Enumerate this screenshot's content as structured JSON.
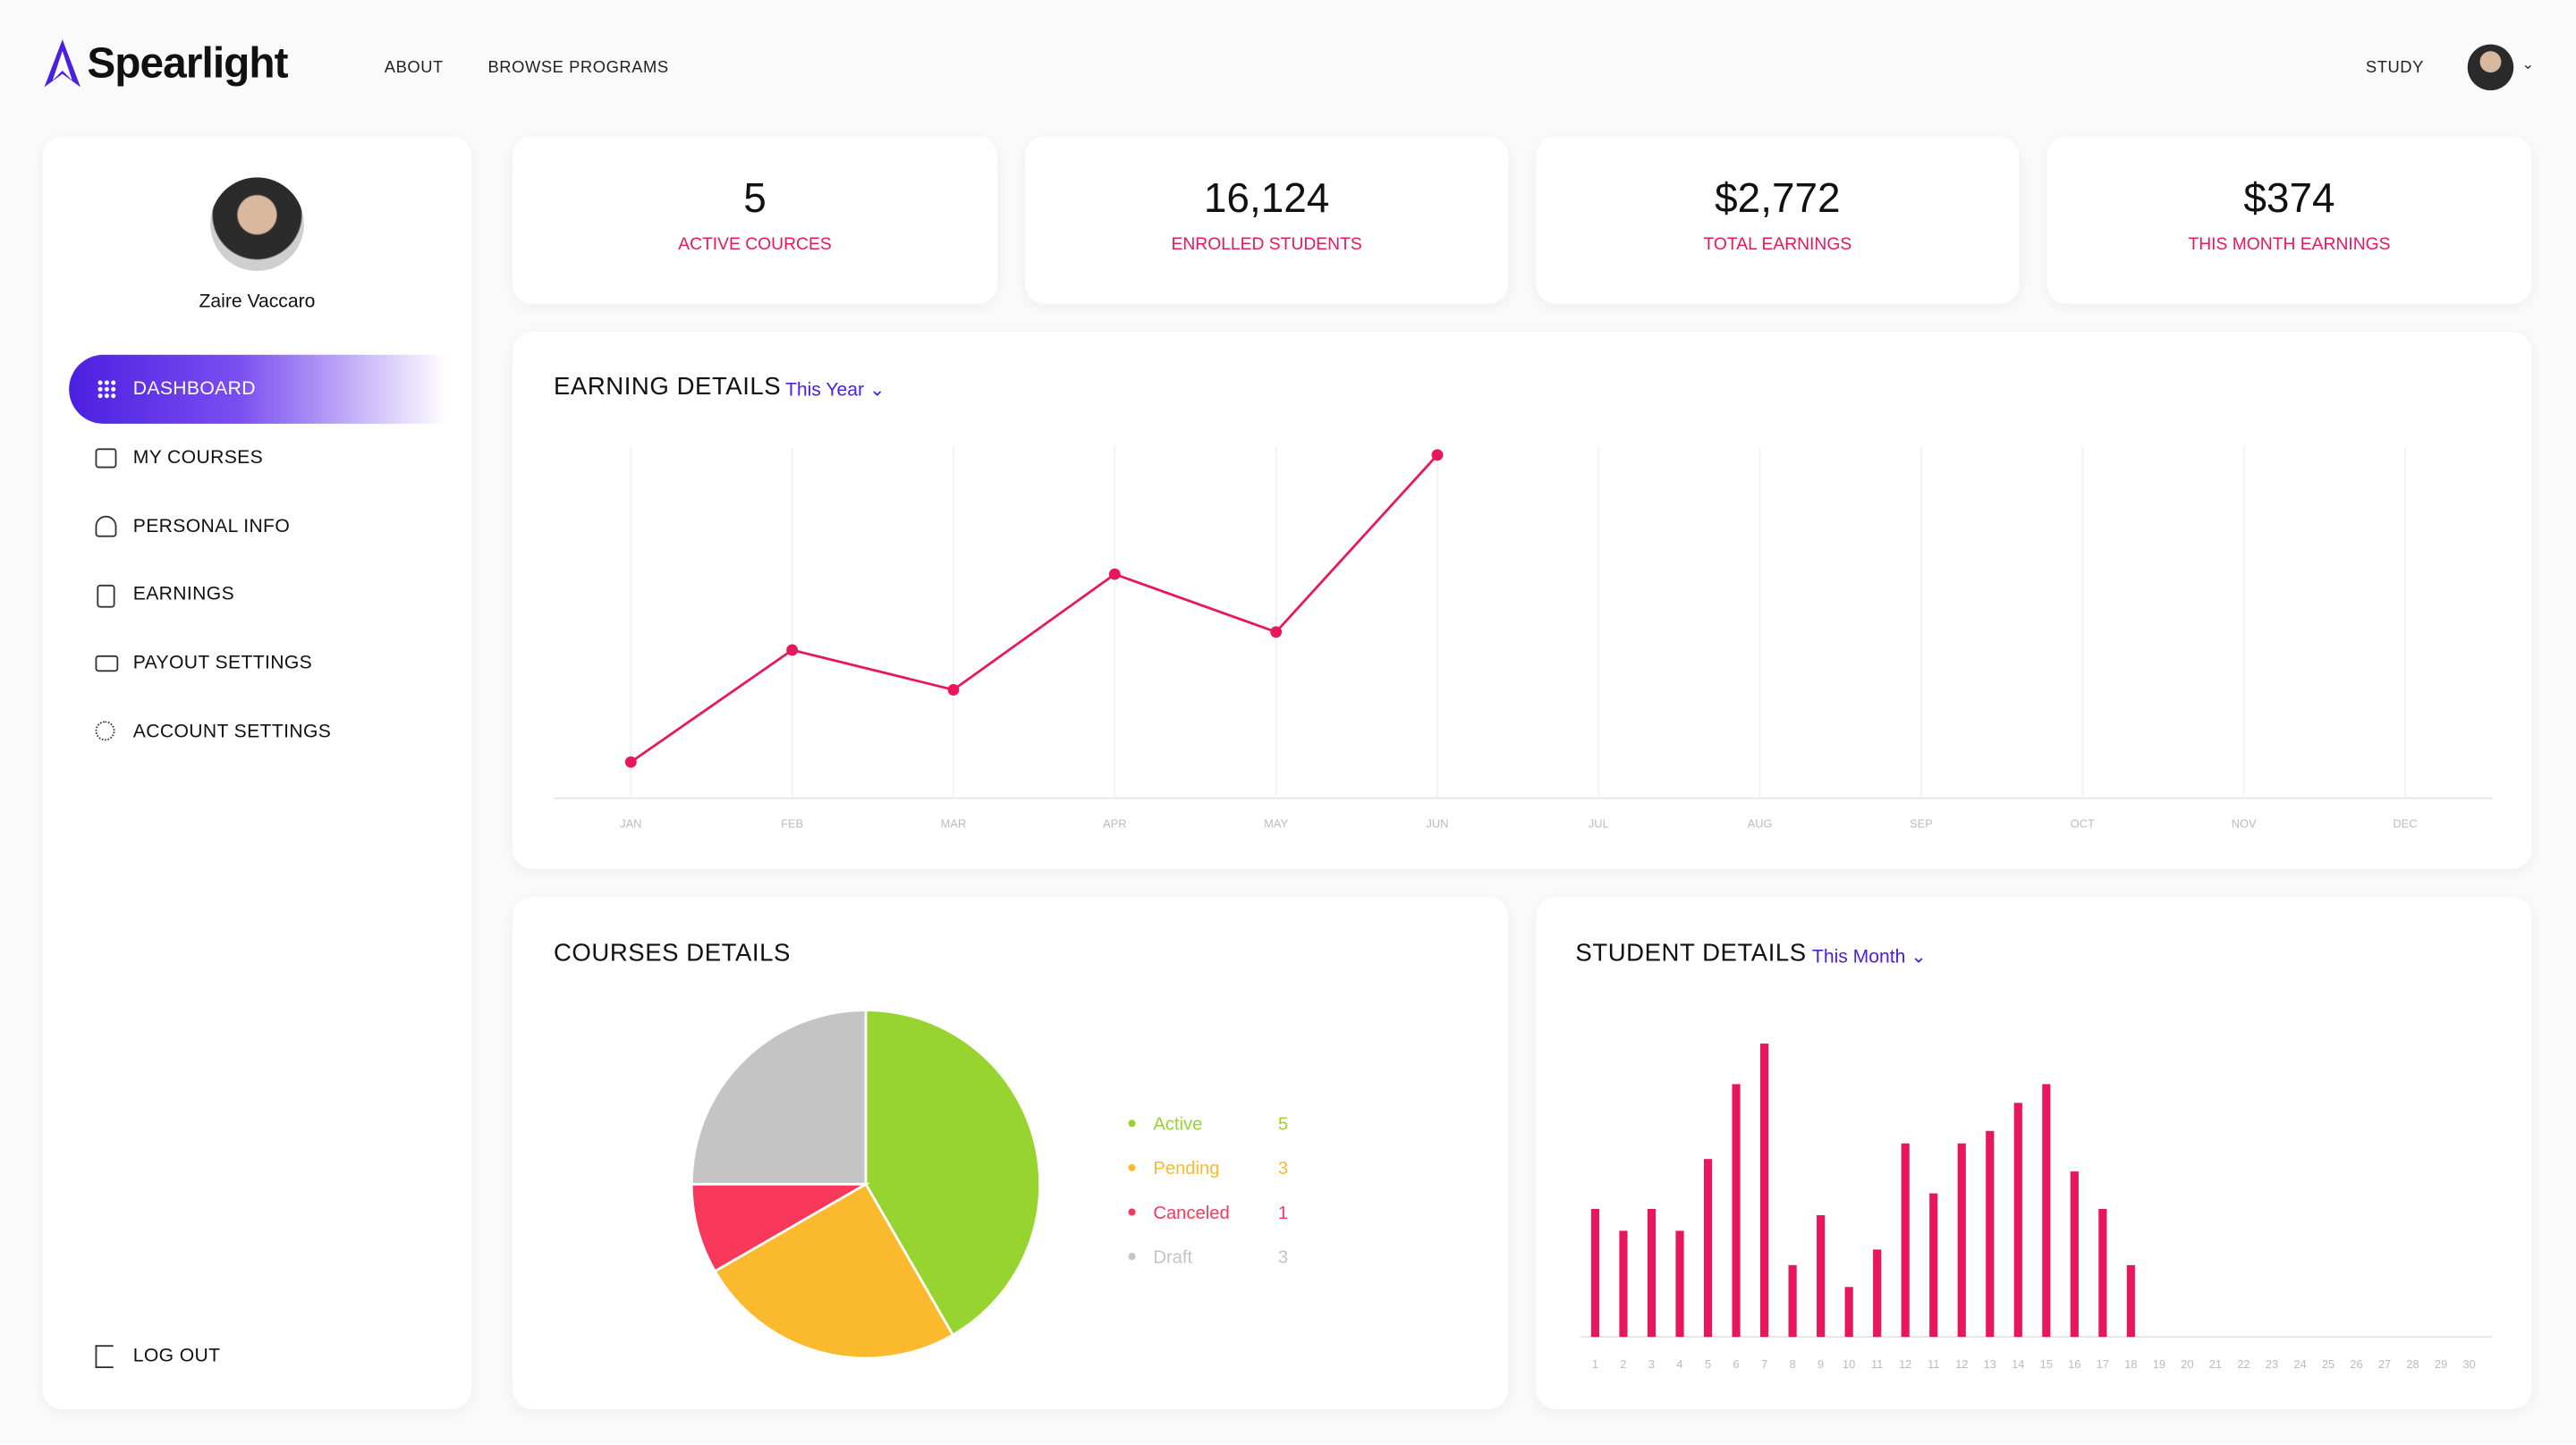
{
  "header": {
    "logo": "Spearlight",
    "nav": [
      "ABOUT",
      "BROWSE PROGRAMS"
    ],
    "study": "STUDY"
  },
  "sidebar": {
    "user": "Zaire Vaccaro",
    "menu": [
      "DASHBOARD",
      "MY COURSES",
      "PERSONAL INFO",
      "EARNINGS",
      "PAYOUT SETTINGS",
      "ACCOUNT SETTINGS"
    ],
    "logout": "LOG OUT"
  },
  "stats": [
    {
      "value": "5",
      "label": "ACTIVE COURCES"
    },
    {
      "value": "16,124",
      "label": "ENROLLED STUDENTS"
    },
    {
      "value": "$2,772",
      "label": "TOTAL EARNINGS"
    },
    {
      "value": "$374",
      "label": "THIS MONTH EARNINGS"
    }
  ],
  "chart_data": [
    {
      "type": "line",
      "title": "EARNING DETAILS",
      "filter": "This Year",
      "categories": [
        "JAN",
        "FEB",
        "MAR",
        "APR",
        "MAY",
        "JUN",
        "JUL",
        "AUG",
        "SEP",
        "OCT",
        "NOV",
        "DEC"
      ],
      "values": [
        10,
        41,
        30,
        62,
        46,
        95,
        null,
        null,
        null,
        null,
        null,
        null
      ],
      "color": "#e8175d",
      "ylim": [
        0,
        100
      ]
    },
    {
      "type": "pie",
      "title": "COURSES DETAILS",
      "categories": [
        "Active",
        "Pending",
        "Canceled",
        "Draft"
      ],
      "values": [
        5,
        3,
        1,
        3
      ],
      "colors": [
        "#97d42f",
        "#fbb92d",
        "#f7385b",
        "#c4c4c4"
      ]
    },
    {
      "type": "bar",
      "title": "STUDENT DETAILS",
      "filter": "This Month",
      "categories": [
        "1",
        "2",
        "3",
        "4",
        "5",
        "6",
        "7",
        "8",
        "9",
        "10",
        "11",
        "12",
        "11",
        "12",
        "13",
        "14",
        "15",
        "16",
        "17",
        "18",
        "19",
        "20",
        "21",
        "22",
        "23",
        "24",
        "25",
        "26",
        "27",
        "28",
        "29",
        "30"
      ],
      "values": [
        41,
        34,
        41,
        34,
        57,
        81,
        94,
        23,
        39,
        16,
        28,
        62,
        46,
        62,
        66,
        75,
        81,
        53,
        41,
        23,
        null,
        null,
        null,
        null,
        null,
        null,
        null,
        null,
        null,
        null,
        null,
        null
      ],
      "color": "#e8175d",
      "ylim": [
        0,
        100
      ]
    }
  ]
}
